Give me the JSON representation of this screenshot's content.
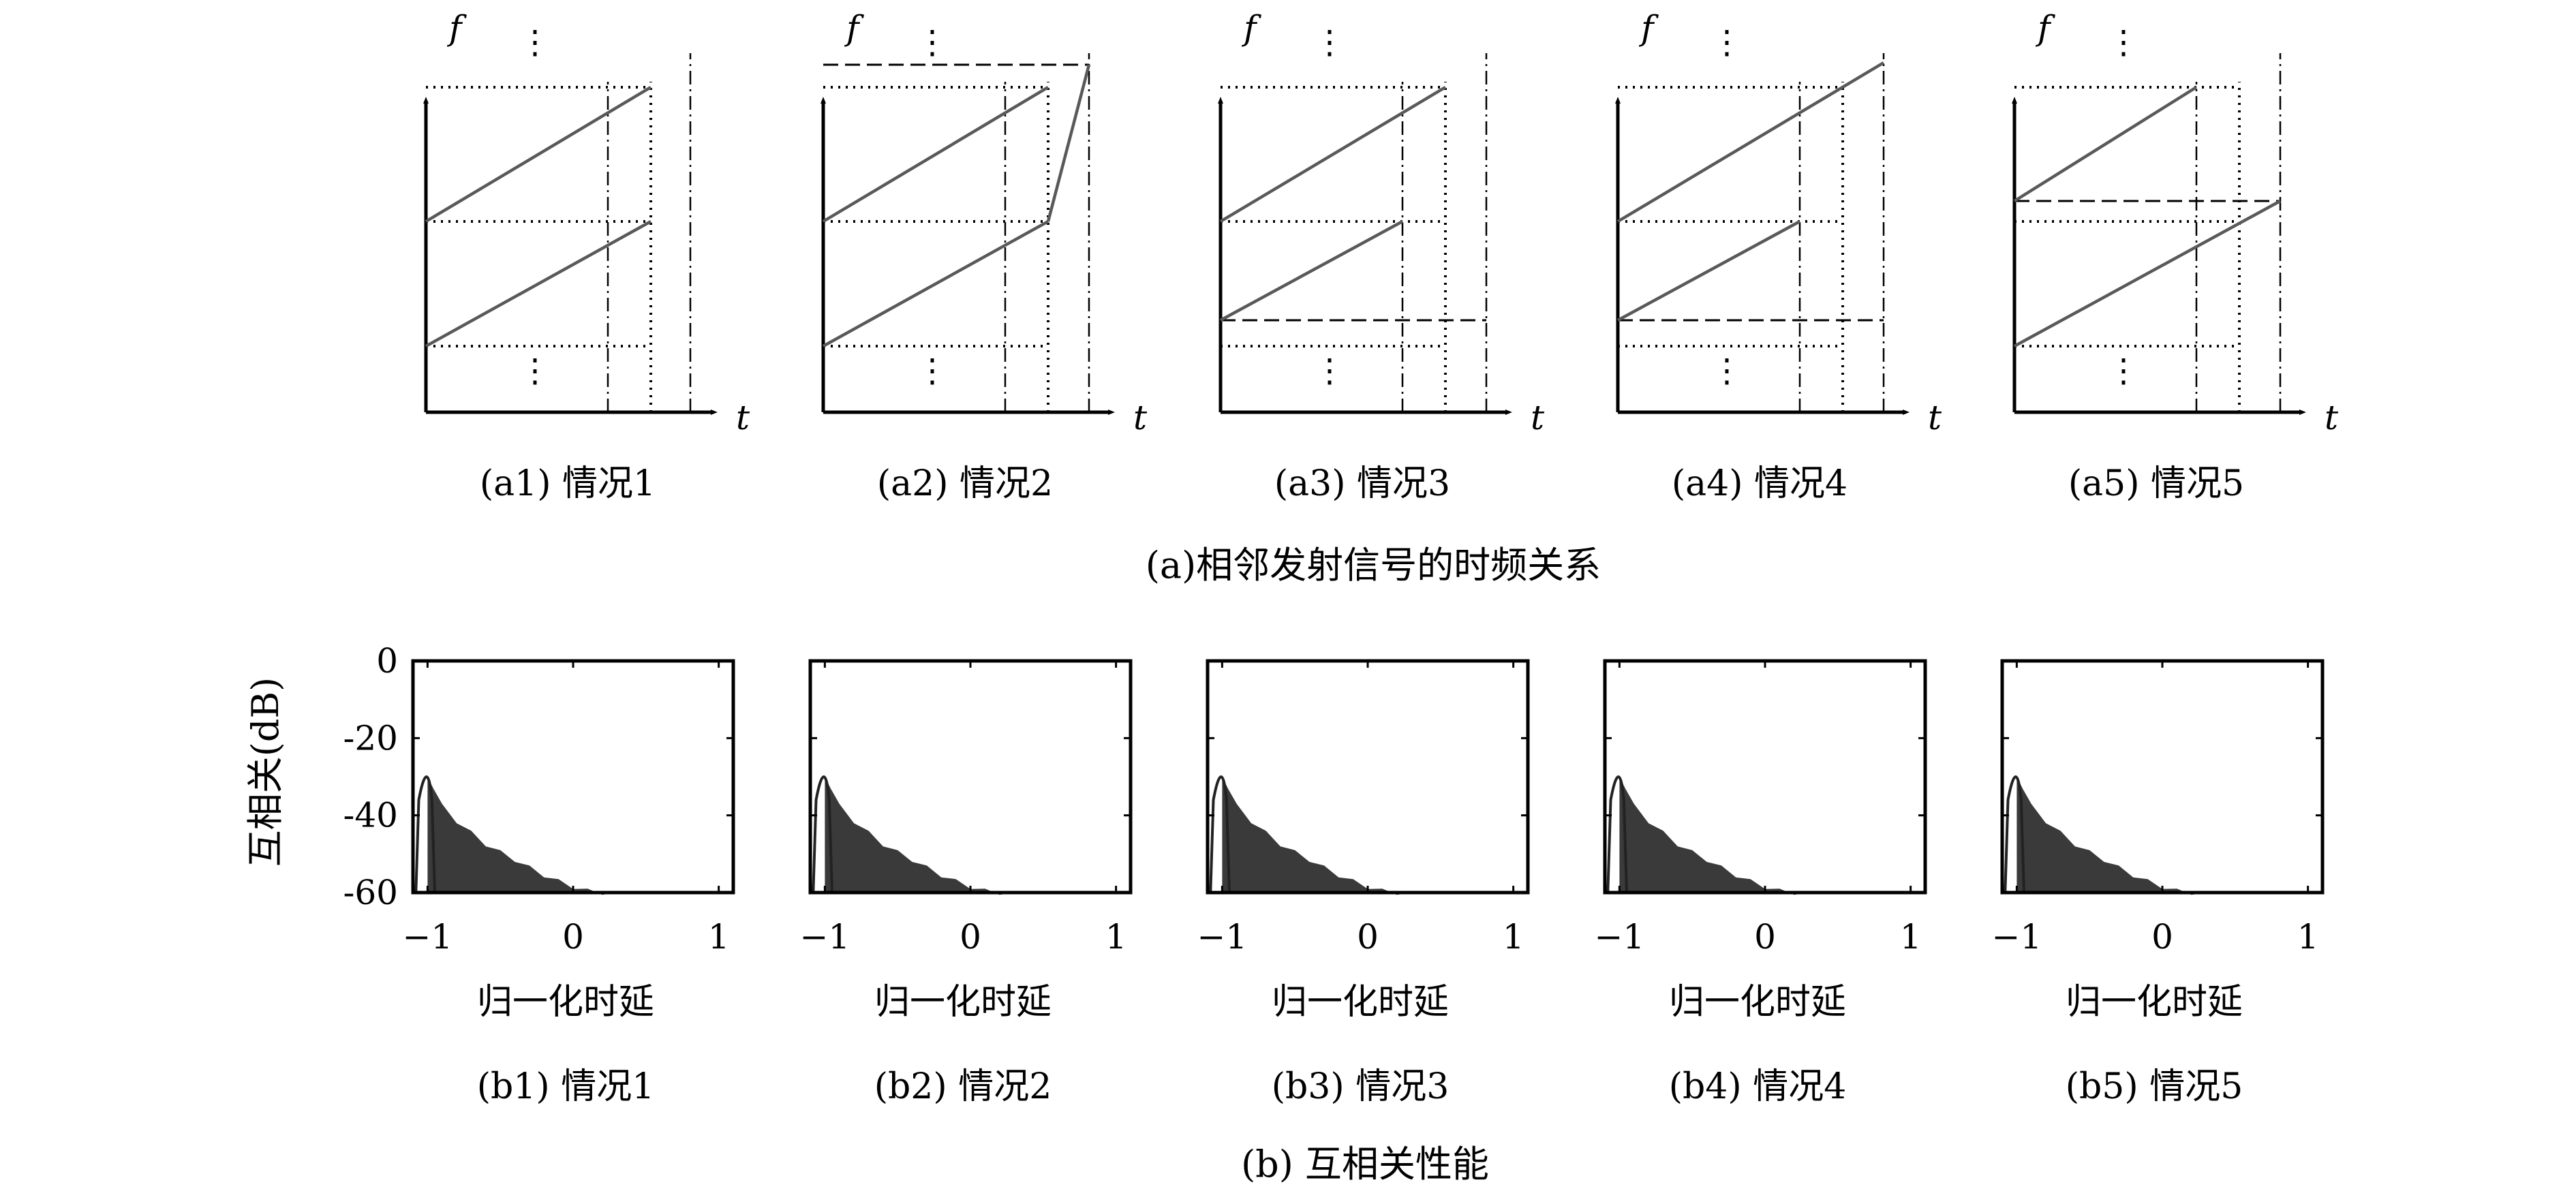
{
  "figure": {
    "row_a_title": "(a)相邻发射信号的时频关系",
    "row_b_title": "(b) 互相关性能",
    "f_label": "f",
    "t_label": "t",
    "vdots": "⋮",
    "colors": {
      "axis": "#000000",
      "chirp": "#595959",
      "fill": "#3a3a3a"
    }
  },
  "panels_a": [
    {
      "caption": "(a1) 情况1"
    },
    {
      "caption": "(a2) 情况2"
    },
    {
      "caption": "(a3) 情况3"
    },
    {
      "caption": "(a4) 情况4"
    },
    {
      "caption": "(a5) 情况5"
    }
  ],
  "panels_b": [
    {
      "caption": "(b1) 情况1"
    },
    {
      "caption": "(b2) 情况2"
    },
    {
      "caption": "(b3) 情况3"
    },
    {
      "caption": "(b4) 情况4"
    },
    {
      "caption": "(b5) 情况5"
    }
  ],
  "chart_data": {
    "type": "area",
    "ylabel": "互相关(dB)",
    "xlabel": "归一化时延",
    "ylim": [
      -60,
      0
    ],
    "xlim": [
      -1.1,
      1.1
    ],
    "yticks": [
      "0",
      "-20",
      "-40",
      "-60"
    ],
    "xticks": [
      "−1",
      "0",
      "1"
    ],
    "xtick_values": [
      -1,
      0,
      1
    ],
    "ytick_values": [
      0,
      -20,
      -40,
      -60
    ],
    "grid": false,
    "series": [
      {
        "x": [
          -1.0,
          -0.96,
          -0.9,
          -0.8,
          -0.7,
          -0.6,
          -0.5,
          -0.4,
          -0.3,
          -0.2,
          -0.1,
          0.0,
          0.1,
          0.2,
          0.3
        ],
        "values": [
          -30,
          -32,
          -37,
          -41,
          -44,
          -47,
          -49,
          -51,
          -53,
          -55,
          -56.5,
          -58,
          -59,
          -59.5,
          -60
        ]
      }
    ]
  }
}
